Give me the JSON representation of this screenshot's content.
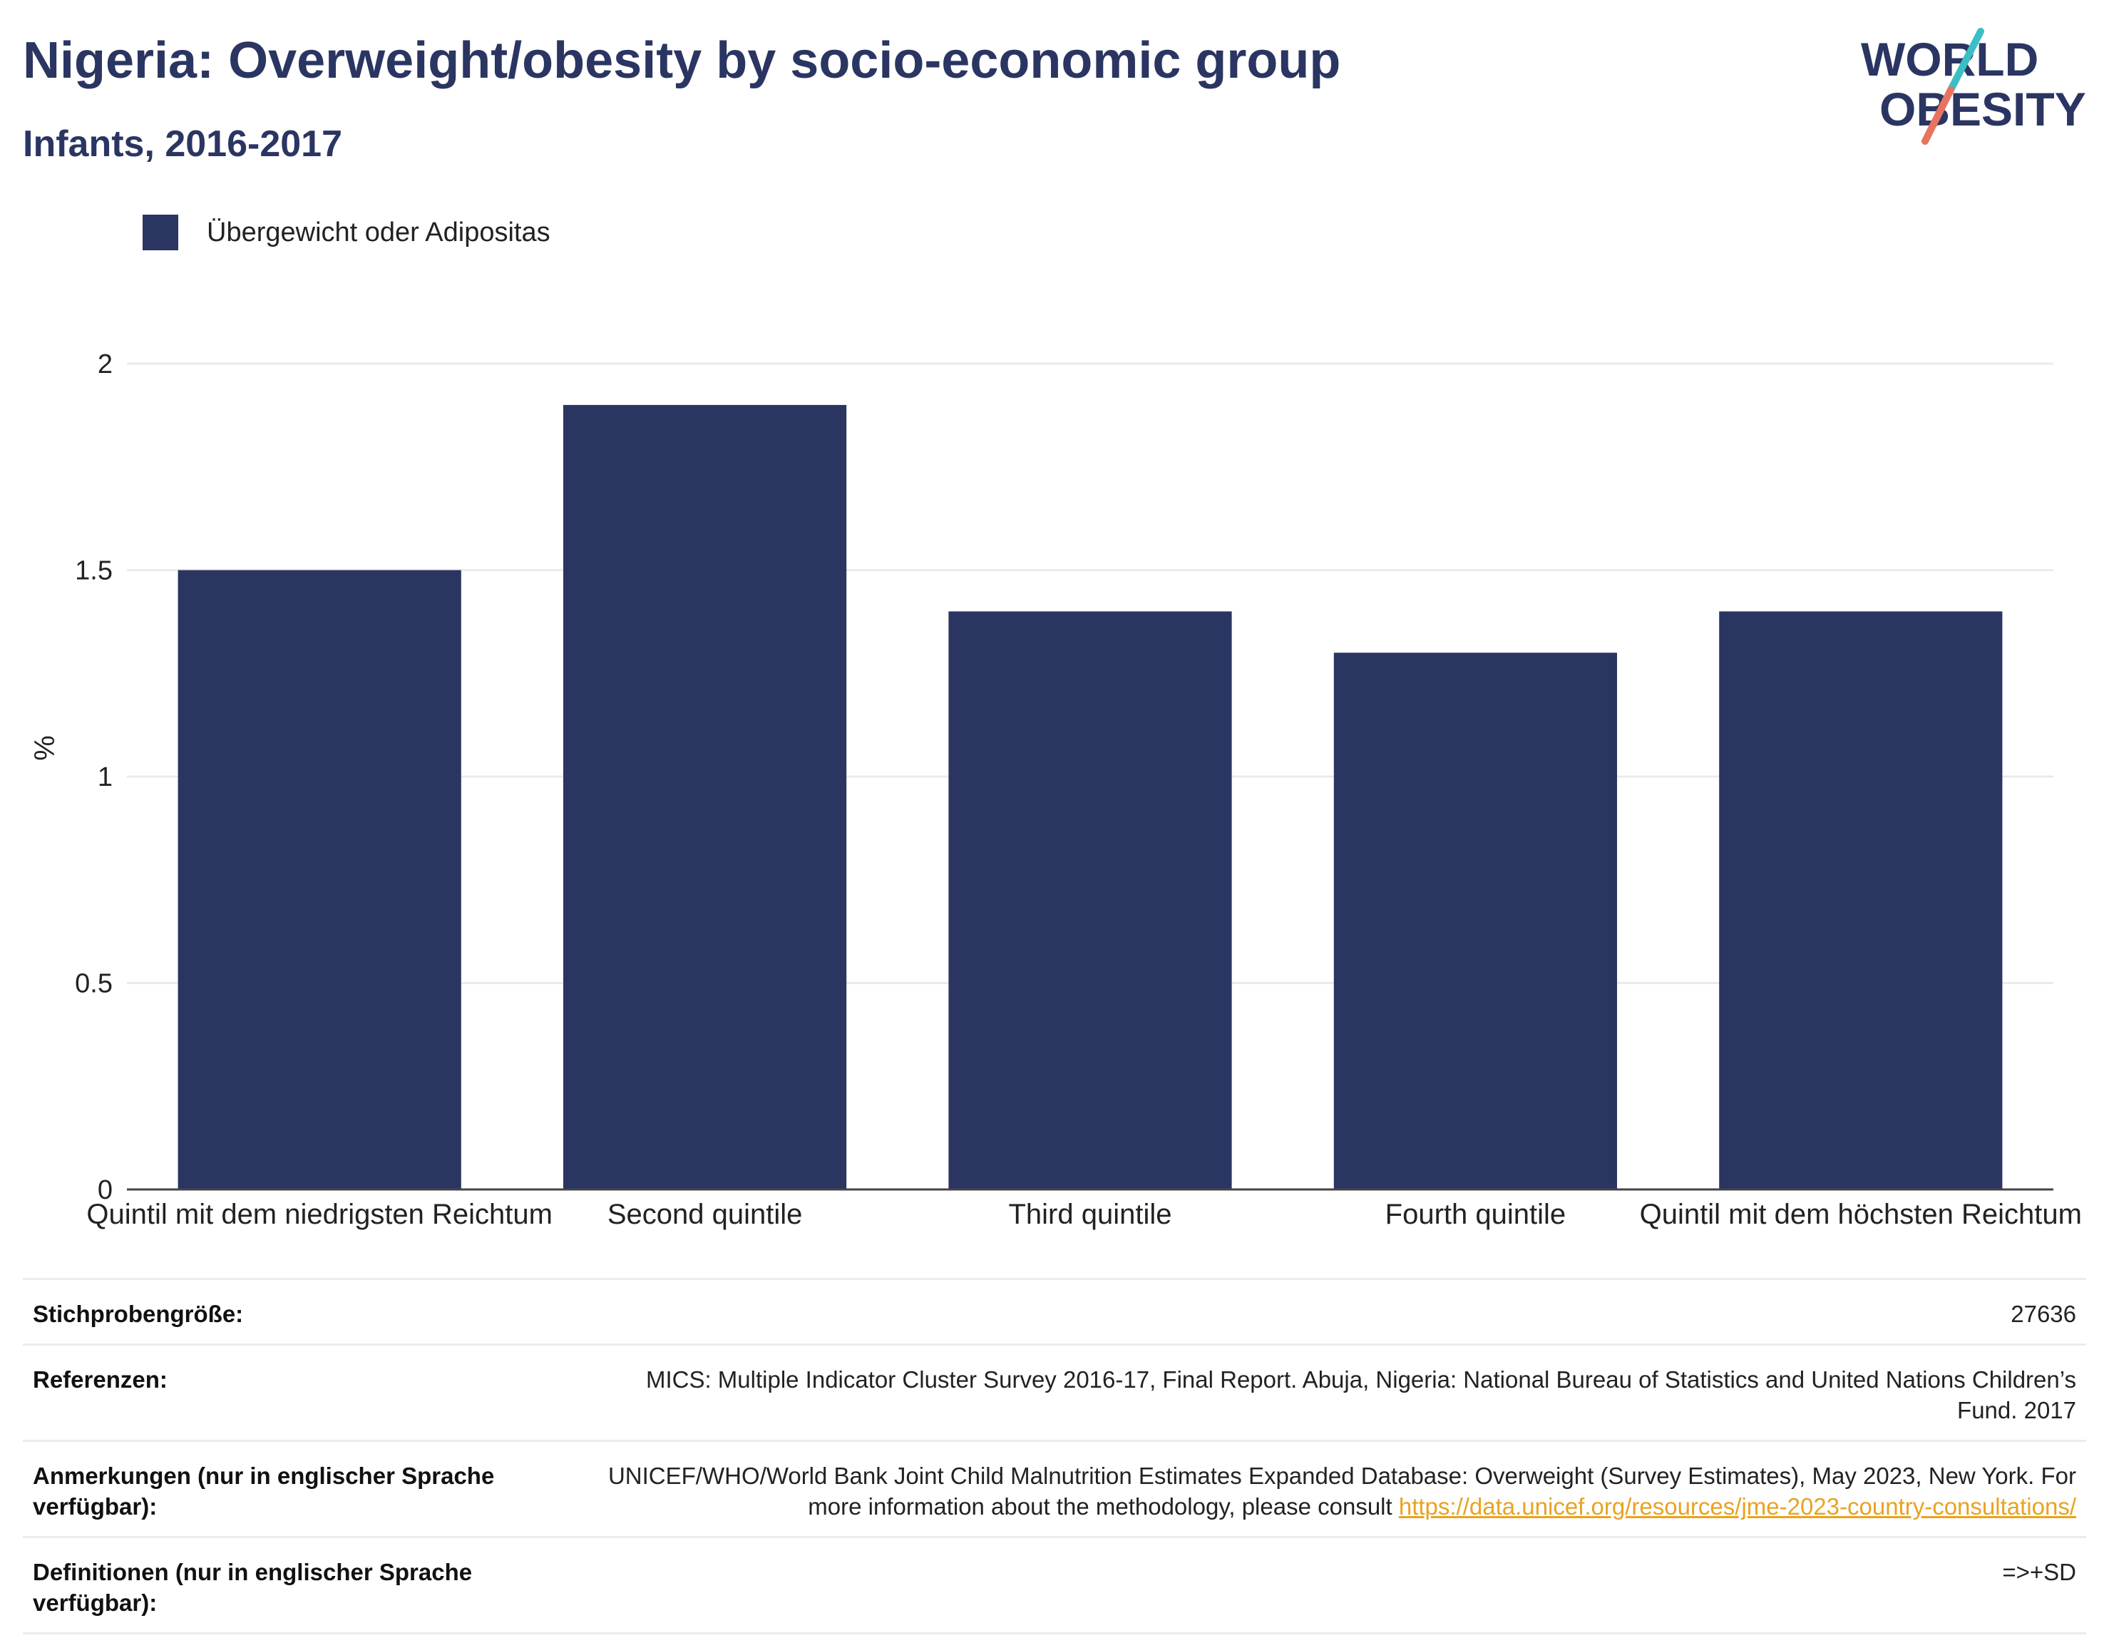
{
  "header": {
    "title": "Nigeria: Overweight/obesity by socio-economic group",
    "subtitle": "Infants, 2016-2017"
  },
  "logo": {
    "line1": "WORLD",
    "line2": "OBESITY",
    "colors": {
      "text": "#2a3562",
      "slash_top": "#3bbfc4",
      "slash_bottom": "#e8735f"
    }
  },
  "legend": {
    "label": "Übergewicht oder Adipositas",
    "color": "#2a3562"
  },
  "chart_data": {
    "type": "bar",
    "title": "Nigeria: Overweight/obesity by socio-economic group",
    "subtitle": "Infants, 2016-2017",
    "xlabel": "",
    "ylabel": "%",
    "ylim": [
      0,
      2
    ],
    "yticks": [
      0,
      0.5,
      1,
      1.5,
      2
    ],
    "ytick_labels": [
      "0",
      "0.5",
      "1",
      "1.5",
      "2"
    ],
    "grid": true,
    "legend_position": "top-left",
    "categories": [
      "Quintil mit dem niedrigsten Reichtum",
      "Second quintile",
      "Third quintile",
      "Fourth quintile",
      "Quintil mit dem höchsten Reichtum"
    ],
    "series": [
      {
        "name": "Übergewicht oder Adipositas",
        "color": "#2a3562",
        "values": [
          1.5,
          1.9,
          1.4,
          1.3,
          1.4
        ]
      }
    ]
  },
  "footer": {
    "rows": [
      {
        "label": "Stichprobengröße:",
        "value": "27636"
      },
      {
        "label": "Referenzen:",
        "value": "MICS: Multiple Indicator Cluster Survey 2016-17, Final Report. Abuja, Nigeria: National Bureau of Statistics and United Nations Children’s Fund. 2017"
      },
      {
        "label": "Anmerkungen (nur in englischer Sprache verfügbar):",
        "value": "UNICEF/WHO/World Bank Joint Child Malnutrition Estimates Expanded Database: Overweight (Survey Estimates), May 2023, New York. For more information about the methodology, please consult ",
        "link": "https://data.unicef.org/resources/jme-2023-country-consultations/"
      },
      {
        "label": "Definitionen (nur in englischer Sprache verfügbar):",
        "value": "=>+SD"
      }
    ]
  }
}
